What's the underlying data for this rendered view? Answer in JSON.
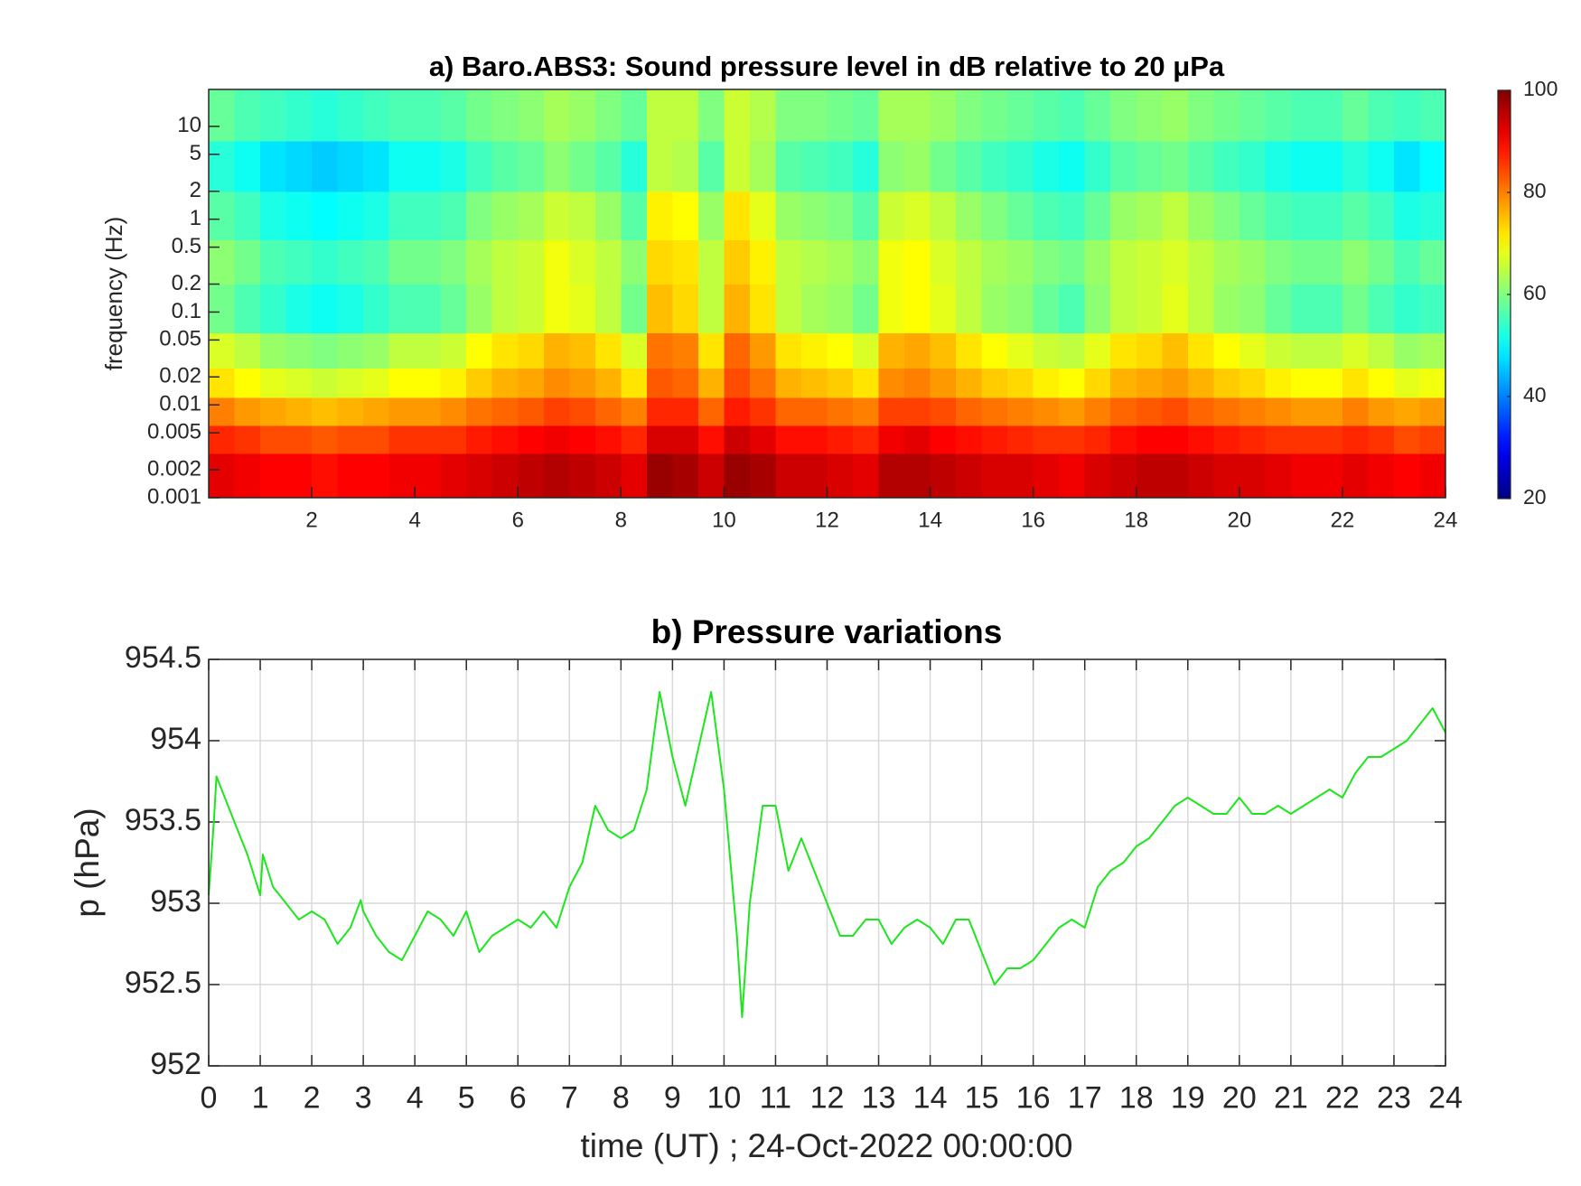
{
  "chart_data": [
    {
      "type": "heatmap",
      "title": "a) Baro.ABS3: Sound pressure level in dB relative to 20 μPa",
      "ylabel": "frequency (Hz)",
      "xbins": [
        0,
        0.5,
        1,
        1.5,
        2,
        2.5,
        3,
        3.5,
        4,
        4.5,
        5,
        5.5,
        6,
        6.5,
        7,
        7.5,
        8,
        8.5,
        9,
        9.5,
        10,
        10.5,
        11,
        11.5,
        12,
        12.5,
        13,
        13.5,
        14,
        14.5,
        15,
        15.5,
        16,
        16.5,
        17,
        17.5,
        18,
        18.5,
        19,
        19.5,
        20,
        20.5,
        21,
        21.5,
        22,
        22.5,
        23,
        23.5,
        24
      ],
      "ybins": [
        0.001,
        0.003,
        0.006,
        0.012,
        0.025,
        0.06,
        0.2,
        0.6,
        2,
        7,
        25
      ],
      "values": [
        [
          92,
          91,
          90,
          90,
          89,
          90,
          90,
          91,
          91,
          92,
          93,
          94,
          95,
          96,
          95,
          94,
          92,
          98,
          97,
          94,
          98,
          97,
          94,
          94,
          93,
          92,
          96,
          96,
          95,
          94,
          93,
          93,
          92,
          91,
          93,
          94,
          95,
          95,
          94,
          93,
          93,
          92,
          91,
          91,
          92,
          91,
          90,
          91
        ],
        [
          87,
          86,
          84,
          84,
          83,
          84,
          84,
          86,
          86,
          86,
          88,
          89,
          90,
          91,
          90,
          89,
          87,
          93,
          93,
          89,
          94,
          92,
          89,
          89,
          88,
          87,
          91,
          92,
          90,
          89,
          88,
          87,
          86,
          86,
          87,
          89,
          90,
          90,
          89,
          88,
          87,
          86,
          86,
          86,
          87,
          86,
          84,
          85
        ],
        [
          80,
          78,
          77,
          76,
          75,
          76,
          77,
          78,
          78,
          79,
          81,
          82,
          83,
          85,
          84,
          82,
          80,
          87,
          87,
          82,
          88,
          86,
          82,
          82,
          81,
          80,
          85,
          85,
          84,
          82,
          81,
          80,
          79,
          78,
          80,
          82,
          83,
          84,
          82,
          81,
          80,
          79,
          78,
          78,
          80,
          78,
          77,
          78
        ],
        [
          72,
          70,
          68,
          67,
          66,
          67,
          68,
          70,
          70,
          71,
          74,
          76,
          77,
          79,
          78,
          76,
          72,
          83,
          82,
          76,
          84,
          81,
          76,
          75,
          74,
          72,
          79,
          80,
          78,
          76,
          74,
          73,
          71,
          70,
          73,
          76,
          77,
          78,
          76,
          74,
          73,
          71,
          70,
          70,
          72,
          70,
          68,
          69
        ],
        [
          67,
          65,
          62,
          61,
          60,
          61,
          62,
          65,
          65,
          66,
          70,
          72,
          73,
          76,
          75,
          72,
          67,
          81,
          80,
          72,
          82,
          78,
          72,
          71,
          70,
          67,
          76,
          77,
          75,
          72,
          70,
          68,
          66,
          65,
          68,
          72,
          73,
          75,
          72,
          70,
          68,
          66,
          65,
          65,
          67,
          65,
          62,
          63
        ],
        [
          59,
          56,
          54,
          52,
          51,
          52,
          54,
          56,
          56,
          58,
          62,
          65,
          66,
          69,
          68,
          65,
          59,
          75,
          73,
          65,
          76,
          72,
          65,
          63,
          62,
          59,
          69,
          70,
          68,
          65,
          62,
          61,
          58,
          56,
          61,
          65,
          66,
          68,
          65,
          62,
          61,
          58,
          56,
          56,
          59,
          56,
          54,
          55
        ],
        [
          61,
          59,
          56,
          55,
          54,
          55,
          56,
          59,
          59,
          60,
          63,
          65,
          66,
          69,
          67,
          65,
          61,
          73,
          72,
          65,
          74,
          71,
          65,
          64,
          63,
          61,
          69,
          70,
          67,
          65,
          63,
          62,
          60,
          59,
          62,
          65,
          66,
          67,
          65,
          63,
          62,
          60,
          59,
          59,
          61,
          59,
          56,
          58
        ],
        [
          57,
          55,
          52,
          51,
          50,
          51,
          52,
          55,
          55,
          56,
          60,
          62,
          63,
          66,
          65,
          62,
          57,
          71,
          70,
          62,
          72,
          68,
          62,
          61,
          60,
          57,
          66,
          67,
          65,
          62,
          60,
          58,
          56,
          55,
          58,
          62,
          63,
          65,
          62,
          60,
          58,
          56,
          55,
          55,
          57,
          55,
          52,
          53
        ],
        [
          53,
          51,
          48,
          47,
          46,
          47,
          48,
          51,
          51,
          52,
          55,
          57,
          58,
          61,
          59,
          57,
          53,
          65,
          64,
          57,
          66,
          63,
          57,
          56,
          55,
          53,
          61,
          62,
          59,
          57,
          55,
          54,
          52,
          51,
          54,
          57,
          58,
          59,
          57,
          55,
          54,
          52,
          51,
          51,
          53,
          51,
          48,
          50
        ],
        [
          58,
          56,
          55,
          54,
          53,
          54,
          55,
          56,
          56,
          57,
          59,
          60,
          61,
          63,
          62,
          60,
          58,
          65,
          65,
          60,
          66,
          64,
          60,
          60,
          59,
          58,
          63,
          63,
          62,
          60,
          59,
          58,
          57,
          56,
          58,
          60,
          61,
          62,
          60,
          59,
          58,
          57,
          56,
          56,
          58,
          56,
          55,
          56
        ]
      ],
      "xlim": [
        0,
        24
      ],
      "xticks": [
        2,
        4,
        6,
        8,
        10,
        12,
        14,
        16,
        18,
        20,
        22,
        24
      ],
      "ylim": [
        0.001,
        25
      ],
      "yticks": [
        0.001,
        0.002,
        0.005,
        0.01,
        0.02,
        0.05,
        0.1,
        0.2,
        0.5,
        1,
        2,
        5,
        10
      ],
      "ylog": true,
      "colormap": "jet",
      "clim": [
        20,
        100
      ],
      "cticks": [
        20,
        40,
        60,
        80,
        100
      ]
    },
    {
      "type": "line",
      "title": "b) Pressure variations",
      "xlabel": "time (UT) ; 24-Oct-2022 00:00:00",
      "ylabel": "p (hPa)",
      "color": "#1ee61e",
      "x": [
        0,
        0.1,
        0.15,
        0.25,
        0.5,
        0.75,
        1,
        1.05,
        1.25,
        1.5,
        1.75,
        2,
        2.25,
        2.5,
        2.75,
        2.95,
        3,
        3.25,
        3.5,
        3.75,
        4,
        4.25,
        4.5,
        4.75,
        5,
        5.25,
        5.5,
        5.75,
        6,
        6.25,
        6.5,
        6.75,
        7,
        7.25,
        7.5,
        7.75,
        8,
        8.25,
        8.5,
        8.75,
        9,
        9.25,
        9.5,
        9.75,
        10,
        10.25,
        10.35,
        10.5,
        10.75,
        11,
        11.25,
        11.5,
        11.75,
        12,
        12.25,
        12.5,
        12.75,
        13,
        13.25,
        13.5,
        13.75,
        14,
        14.25,
        14.5,
        14.75,
        15,
        15.25,
        15.5,
        15.75,
        16,
        16.25,
        16.5,
        16.75,
        17,
        17.25,
        17.5,
        17.75,
        18,
        18.25,
        18.5,
        18.75,
        19,
        19.25,
        19.5,
        19.75,
        20,
        20.25,
        20.5,
        20.75,
        21,
        21.25,
        21.5,
        21.75,
        22,
        22.25,
        22.5,
        22.75,
        23,
        23.25,
        23.5,
        23.75,
        24
      ],
      "values": [
        953.05,
        953.5,
        953.78,
        953.7,
        953.5,
        953.3,
        953.05,
        953.3,
        953.1,
        953.0,
        952.9,
        952.95,
        952.9,
        952.75,
        952.85,
        953.02,
        952.95,
        952.8,
        952.7,
        952.65,
        952.8,
        952.95,
        952.9,
        952.8,
        952.95,
        952.7,
        952.8,
        952.85,
        952.9,
        952.85,
        952.95,
        952.85,
        953.1,
        953.25,
        953.6,
        953.45,
        953.4,
        953.45,
        953.7,
        954.3,
        953.9,
        953.6,
        953.95,
        954.3,
        953.7,
        952.8,
        952.3,
        953.0,
        953.6,
        953.6,
        953.2,
        953.4,
        953.2,
        953.0,
        952.8,
        952.8,
        952.9,
        952.9,
        952.75,
        952.85,
        952.9,
        952.85,
        952.75,
        952.9,
        952.9,
        952.7,
        952.5,
        952.6,
        952.6,
        952.65,
        952.75,
        952.85,
        952.9,
        952.85,
        953.1,
        953.2,
        953.25,
        953.35,
        953.4,
        953.5,
        953.6,
        953.65,
        953.6,
        953.55,
        953.55,
        953.65,
        953.55,
        953.55,
        953.6,
        953.55,
        953.6,
        953.65,
        953.7,
        953.65,
        953.8,
        953.9,
        953.9,
        953.95,
        954.0,
        954.1,
        954.2,
        954.05
      ],
      "xlim": [
        0,
        24
      ],
      "xticks": [
        0,
        1,
        2,
        3,
        4,
        5,
        6,
        7,
        8,
        9,
        10,
        11,
        12,
        13,
        14,
        15,
        16,
        17,
        18,
        19,
        20,
        21,
        22,
        23,
        24
      ],
      "ylim": [
        952,
        954.5
      ],
      "yticks": [
        952,
        952.5,
        953,
        953.5,
        954,
        954.5
      ],
      "grid": true
    }
  ]
}
